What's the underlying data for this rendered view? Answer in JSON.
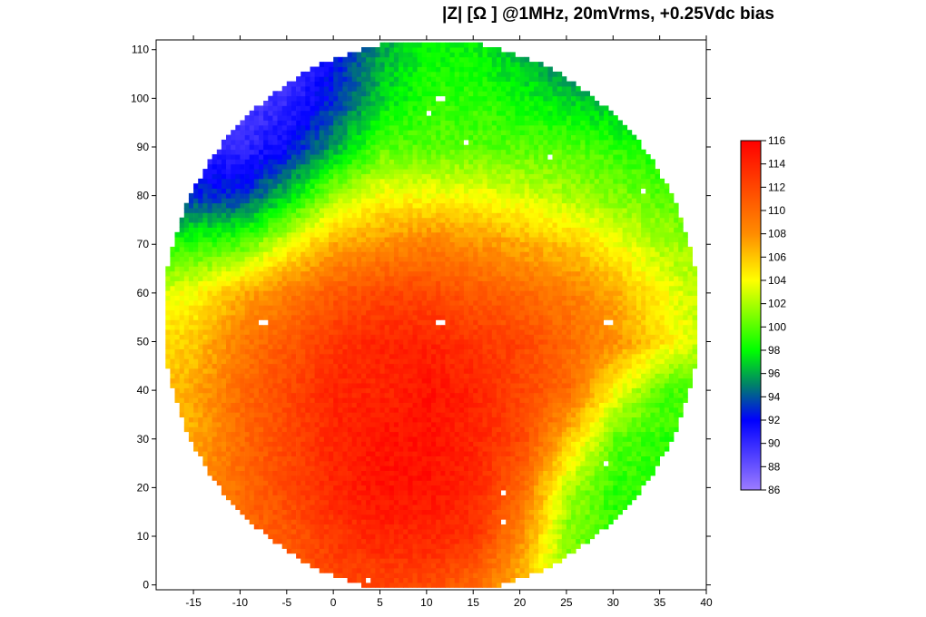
{
  "chart_data": {
    "type": "heatmap",
    "title": "|Z| [Ω ] @1MHz, 20mVrms, +0.25Vdc bias",
    "xlabel": "",
    "ylabel": "",
    "xlim": [
      -19,
      40
    ],
    "ylim": [
      -1,
      112
    ],
    "xticks": [
      -15,
      -10,
      -5,
      0,
      5,
      10,
      15,
      20,
      25,
      30,
      35,
      40
    ],
    "yticks": [
      0,
      10,
      20,
      30,
      40,
      50,
      60,
      70,
      80,
      90,
      100,
      110
    ],
    "cell_size": {
      "x": 0.5,
      "y": 1
    },
    "wafer": {
      "center_x": 10.5,
      "center_y": 55.5,
      "radius_x": 28.7,
      "radius_y": 57
    },
    "grid_x": [
      -20,
      -15,
      -10,
      -5,
      0,
      5,
      10,
      15,
      20,
      25,
      30,
      35,
      40
    ],
    "grid_y": [
      110,
      100,
      90,
      80,
      70,
      60,
      50,
      40,
      30,
      20,
      10,
      0
    ],
    "values": [
      [
        88,
        88,
        88,
        89,
        92,
        96,
        98,
        98,
        96,
        94,
        92,
        92,
        92
      ],
      [
        88,
        88,
        89,
        90,
        93,
        97,
        99,
        99,
        98,
        97,
        96,
        95,
        94
      ],
      [
        90,
        90,
        90,
        92,
        96,
        100,
        100,
        100,
        100,
        100,
        99,
        98,
        98
      ],
      [
        93,
        93,
        93,
        97,
        102,
        104,
        104,
        104,
        103,
        102,
        101,
        100,
        100
      ],
      [
        99,
        99,
        100,
        104,
        107,
        108,
        109,
        108,
        107,
        106,
        104,
        102,
        101
      ],
      [
        103,
        104,
        107,
        109,
        111,
        112,
        112,
        111,
        110,
        109,
        107,
        104,
        102
      ],
      [
        105,
        106,
        109,
        111,
        113,
        114,
        114,
        113,
        112,
        110,
        108,
        105,
        102
      ],
      [
        106,
        107,
        110,
        112,
        114,
        114,
        115,
        114,
        112,
        110,
        104,
        100,
        99
      ],
      [
        106,
        107,
        110,
        112,
        114,
        115,
        115,
        114,
        112,
        106,
        100,
        99,
        99
      ],
      [
        107,
        108,
        110,
        112,
        114,
        115,
        115,
        114,
        110,
        102,
        99,
        99,
        99
      ],
      [
        108,
        109,
        110,
        111,
        113,
        114,
        114,
        113,
        108,
        101,
        99,
        99,
        99
      ],
      [
        110,
        110,
        110,
        111,
        112,
        112,
        112,
        110,
        106,
        101,
        99,
        99,
        99
      ]
    ],
    "missing_cells": [
      [
        -8,
        54
      ],
      [
        -7.5,
        54
      ],
      [
        11,
        54
      ],
      [
        11.5,
        54
      ],
      [
        29,
        54
      ],
      [
        29.5,
        54
      ],
      [
        11,
        100
      ],
      [
        11.5,
        100
      ],
      [
        10,
        97
      ],
      [
        14,
        91
      ],
      [
        23,
        88
      ],
      [
        33,
        81
      ],
      [
        18,
        19
      ],
      [
        18,
        13
      ],
      [
        29,
        25
      ],
      [
        3.5,
        1
      ]
    ],
    "colorbar": {
      "min": 86,
      "max": 116,
      "ticks": [
        86,
        88,
        90,
        92,
        94,
        96,
        98,
        100,
        102,
        104,
        106,
        108,
        110,
        112,
        114,
        116
      ],
      "stops": [
        {
          "v": 86,
          "c": "#9c7cff"
        },
        {
          "v": 92,
          "c": "#0000ff"
        },
        {
          "v": 95,
          "c": "#00806a"
        },
        {
          "v": 98,
          "c": "#00ff00"
        },
        {
          "v": 104,
          "c": "#ffff00"
        },
        {
          "v": 108,
          "c": "#ff8c00"
        },
        {
          "v": 116,
          "c": "#ff0000"
        }
      ]
    }
  }
}
